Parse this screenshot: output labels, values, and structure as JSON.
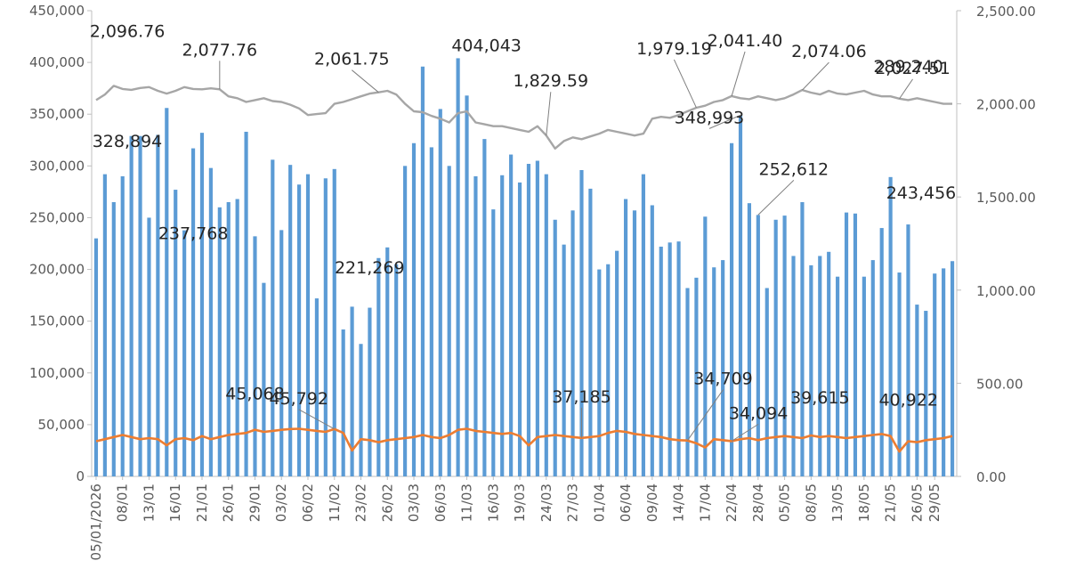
{
  "chart_data": {
    "type": "bar+line",
    "grid": false,
    "legend": "none",
    "colors": {
      "bars": "#5B9BD5",
      "price_line": "#A6A6A6",
      "orange_line": "#ED7D31",
      "axis_text": "#595959"
    },
    "y_left": {
      "range": [
        0,
        450000
      ],
      "ticks": [
        "0",
        "50,000",
        "100,000",
        "150,000",
        "200,000",
        "250,000",
        "300,000",
        "350,000",
        "400,000",
        "450,000"
      ]
    },
    "y_right": {
      "range": [
        0,
        2500
      ],
      "ticks": [
        "0.00",
        "500.00",
        "1,000.00",
        "1,500.00",
        "2,000.00",
        "2,500.00"
      ]
    },
    "x_tick_labels": [
      {
        "i": 0,
        "label": "05/01/2026"
      },
      {
        "i": 3,
        "label": "08/01"
      },
      {
        "i": 6,
        "label": "13/01"
      },
      {
        "i": 9,
        "label": "16/01"
      },
      {
        "i": 12,
        "label": "21/01"
      },
      {
        "i": 15,
        "label": "26/01"
      },
      {
        "i": 18,
        "label": "29/01"
      },
      {
        "i": 21,
        "label": "03/02"
      },
      {
        "i": 24,
        "label": "06/02"
      },
      {
        "i": 27,
        "label": "11/02"
      },
      {
        "i": 30,
        "label": "23/02"
      },
      {
        "i": 33,
        "label": "26/02"
      },
      {
        "i": 36,
        "label": "03/03"
      },
      {
        "i": 39,
        "label": "06/03"
      },
      {
        "i": 42,
        "label": "11/03"
      },
      {
        "i": 45,
        "label": "16/03"
      },
      {
        "i": 48,
        "label": "19/03"
      },
      {
        "i": 51,
        "label": "24/03"
      },
      {
        "i": 54,
        "label": "27/03"
      },
      {
        "i": 57,
        "label": "01/04"
      },
      {
        "i": 60,
        "label": "06/04"
      },
      {
        "i": 63,
        "label": "09/04"
      },
      {
        "i": 66,
        "label": "14/04"
      },
      {
        "i": 69,
        "label": "17/04"
      },
      {
        "i": 72,
        "label": "22/04"
      },
      {
        "i": 75,
        "label": "28/04"
      },
      {
        "i": 78,
        "label": "05/05"
      },
      {
        "i": 81,
        "label": "08/05"
      },
      {
        "i": 84,
        "label": "13/05"
      },
      {
        "i": 87,
        "label": "18/05"
      },
      {
        "i": 90,
        "label": "21/05"
      },
      {
        "i": 93,
        "label": "26/05"
      },
      {
        "i": 95,
        "label": "29/05"
      }
    ],
    "series": [
      {
        "axis": "left",
        "kind": "bar",
        "values": [
          230000,
          292000,
          265000,
          290000,
          328894,
          328894,
          250000,
          330000,
          356000,
          277000,
          237768,
          317000,
          332000,
          298000,
          260000,
          265000,
          268000,
          333000,
          232000,
          187000,
          306000,
          238000,
          301000,
          282000,
          292000,
          172000,
          288000,
          297000,
          142000,
          164000,
          128000,
          163000,
          211000,
          221269,
          205000,
          300000,
          322000,
          396000,
          318000,
          355000,
          300000,
          404043,
          368000,
          290000,
          326000,
          258000,
          291000,
          311000,
          284000,
          302000,
          305000,
          292000,
          248000,
          224000,
          257000,
          296000,
          278000,
          200000,
          205000,
          218000,
          268000,
          257000,
          292000,
          262000,
          222000,
          226000,
          227000,
          182000,
          192000,
          251000,
          202000,
          209000,
          322000,
          348993,
          264000,
          252612,
          182000,
          248000,
          252000,
          213000,
          265000,
          204000,
          213000,
          217000,
          193000,
          255000,
          254000,
          193000,
          209000,
          240000,
          289240,
          197000,
          243456,
          166000,
          160000,
          196000,
          201000,
          208000
        ]
      },
      {
        "axis": "right",
        "kind": "line",
        "color_key": "price_line",
        "values": [
          2020,
          2050,
          2096.76,
          2080,
          2075,
          2085,
          2090,
          2070,
          2055,
          2070,
          2090,
          2080,
          2077.76,
          2083,
          2077.76,
          2040,
          2030,
          2010,
          2020,
          2030,
          2015,
          2010,
          1995,
          1975,
          1940,
          1945,
          1950,
          2000,
          2010,
          2025,
          2040,
          2055,
          2061.75,
          2070,
          2050,
          2000,
          1960,
          1955,
          1935,
          1920,
          1900,
          1950,
          1960,
          1900,
          1890,
          1880,
          1880,
          1870,
          1860,
          1850,
          1880,
          1829.59,
          1760,
          1800,
          1820,
          1810,
          1825,
          1840,
          1860,
          1850,
          1840,
          1830,
          1840,
          1920,
          1930,
          1925,
          1940,
          1960,
          1979.19,
          1990,
          2010,
          2020,
          2041.4,
          2030,
          2025,
          2040,
          2030,
          2020,
          2030,
          2050,
          2074.06,
          2060,
          2050,
          2070,
          2055,
          2050,
          2060,
          2070,
          2050,
          2040,
          2040,
          2027.51,
          2020,
          2030,
          2020,
          2010,
          2000,
          2000
        ]
      },
      {
        "axis": "left",
        "kind": "line",
        "color_key": "orange_line",
        "values": [
          34000,
          36000,
          38000,
          40000,
          38000,
          36000,
          37000,
          36000,
          30000,
          36000,
          37000,
          35000,
          39000,
          36000,
          38000,
          40000,
          41000,
          42000,
          45068,
          43000,
          44000,
          45000,
          45792,
          46000,
          45000,
          44000,
          43000,
          45792,
          42000,
          25000,
          36000,
          35000,
          33000,
          35000,
          36000,
          37000,
          38000,
          40000,
          38000,
          37000,
          40000,
          45000,
          46000,
          44000,
          43000,
          42000,
          41000,
          42000,
          39000,
          30000,
          38000,
          39000,
          40000,
          39000,
          38000,
          37185,
          38000,
          39000,
          42000,
          44000,
          43000,
          41000,
          40000,
          39000,
          38000,
          36000,
          35000,
          34709,
          32000,
          28000,
          36000,
          35000,
          34094,
          36000,
          37000,
          35000,
          37000,
          38000,
          39000,
          38000,
          37000,
          39615,
          38000,
          39000,
          38000,
          37000,
          38000,
          39000,
          40000,
          40922,
          39000,
          24000,
          34000,
          33000,
          35000,
          36000,
          37000,
          39000
        ]
      }
    ],
    "annotations": [
      {
        "text": "2,096.76",
        "target": "price_line",
        "i": 2
      },
      {
        "text": "2,077.76",
        "target": "price_line",
        "i": 14
      },
      {
        "text": "2,061.75",
        "target": "price_line",
        "i": 32
      },
      {
        "text": "404,043",
        "target": "bars",
        "i": 41
      },
      {
        "text": "1,829.59",
        "target": "price_line",
        "i": 51
      },
      {
        "text": "1,979.19",
        "target": "price_line",
        "i": 68
      },
      {
        "text": "2,041.40",
        "target": "price_line",
        "i": 72
      },
      {
        "text": "2,074.06",
        "target": "price_line",
        "i": 80
      },
      {
        "text": "2,027.51",
        "target": "price_line",
        "i": 91
      },
      {
        "text": "328,894",
        "target": "bars",
        "i": 4
      },
      {
        "text": "237,768",
        "target": "bars",
        "i": 10
      },
      {
        "text": "221,269",
        "target": "bars",
        "i": 33
      },
      {
        "text": "348,993",
        "target": "bars",
        "i": 73
      },
      {
        "text": "252,612",
        "target": "bars",
        "i": 75
      },
      {
        "text": "289,240",
        "target": "bars",
        "i": 90
      },
      {
        "text": "243,456",
        "target": "bars",
        "i": 92
      },
      {
        "text": "45,068",
        "target": "orange_line",
        "i": 18
      },
      {
        "text": "45,792",
        "target": "orange_line",
        "i": 27
      },
      {
        "text": "37,185",
        "target": "orange_line",
        "i": 55
      },
      {
        "text": "34,709",
        "target": "orange_line",
        "i": 67
      },
      {
        "text": "34,094",
        "target": "orange_line",
        "i": 72
      },
      {
        "text": "39,615",
        "target": "orange_line",
        "i": 81
      },
      {
        "text": "40,922",
        "target": "orange_line",
        "i": 89
      }
    ]
  }
}
